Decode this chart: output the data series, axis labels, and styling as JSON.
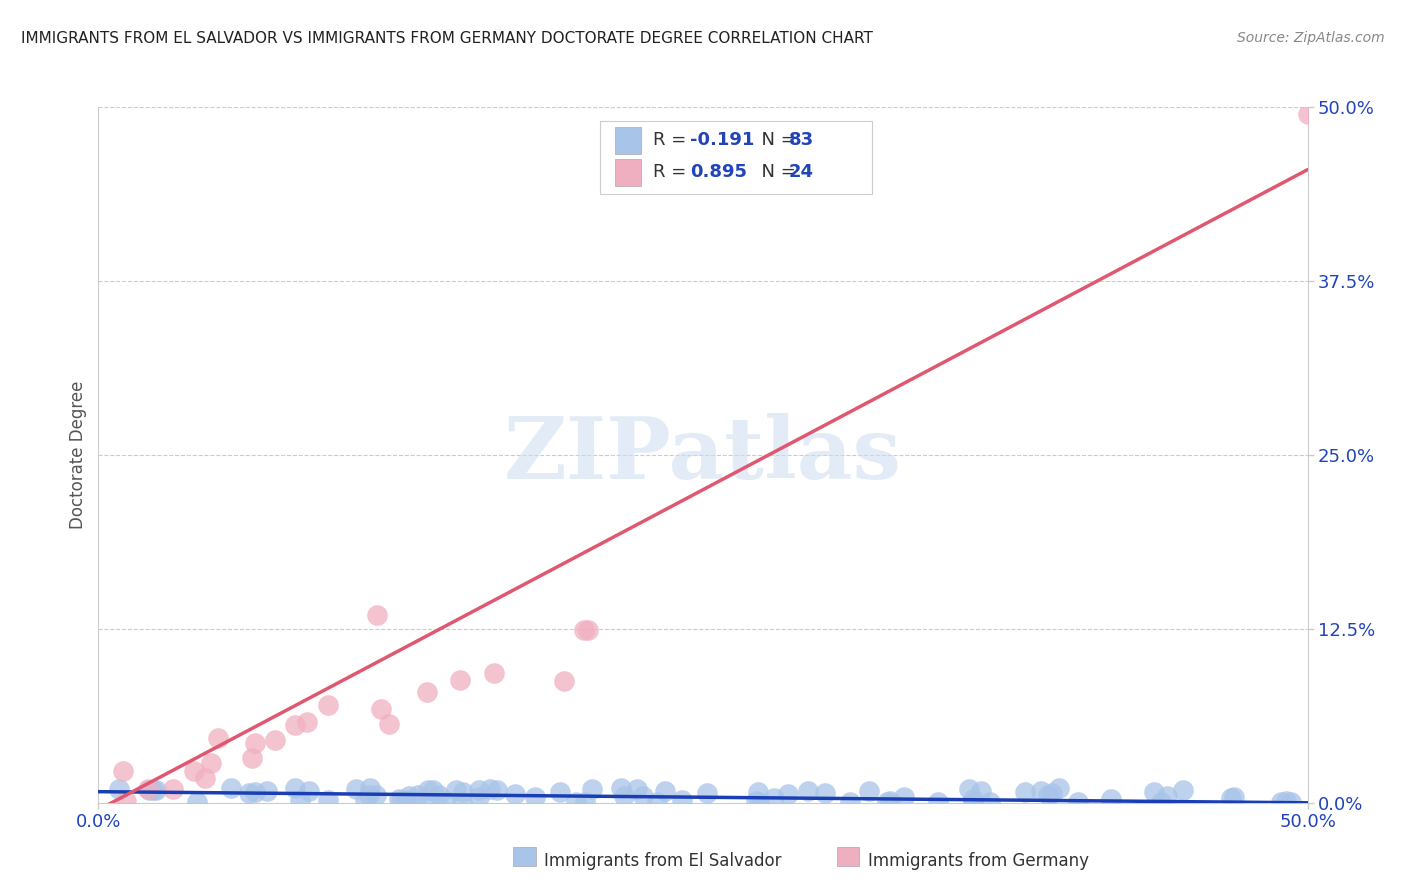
{
  "title": "IMMIGRANTS FROM EL SALVADOR VS IMMIGRANTS FROM GERMANY DOCTORATE DEGREE CORRELATION CHART",
  "source": "Source: ZipAtlas.com",
  "ylabel": "Doctorate Degree",
  "ytick_labels": [
    "0.0%",
    "12.5%",
    "25.0%",
    "37.5%",
    "50.0%"
  ],
  "ytick_values": [
    0.0,
    0.125,
    0.25,
    0.375,
    0.5
  ],
  "xtick_labels": [
    "0.0%",
    "50.0%"
  ],
  "xtick_values": [
    0.0,
    0.5
  ],
  "xlim": [
    0.0,
    0.5
  ],
  "ylim": [
    0.0,
    0.5
  ],
  "sv_color_scatter": "#a8c4e8",
  "sv_color_line": "#1a3fb5",
  "ger_color_scatter": "#f0afc0",
  "ger_color_line": "#e05870",
  "sv_R": -0.191,
  "sv_N": 83,
  "ger_R": 0.895,
  "ger_N": 24,
  "sv_label": "Immigrants from El Salvador",
  "ger_label": "Immigrants from Germany",
  "legend_text_color": "#2244bb",
  "tick_color": "#2244bb",
  "watermark": "ZIPatlas",
  "background_color": "#ffffff",
  "grid_color": "#cccccc",
  "title_color": "#222222",
  "source_color": "#888888",
  "ylabel_color": "#555555",
  "sv_line_start_y": 0.008,
  "sv_line_end_y": 0.0,
  "ger_line_start_y": -0.005,
  "ger_line_end_y": 0.455
}
